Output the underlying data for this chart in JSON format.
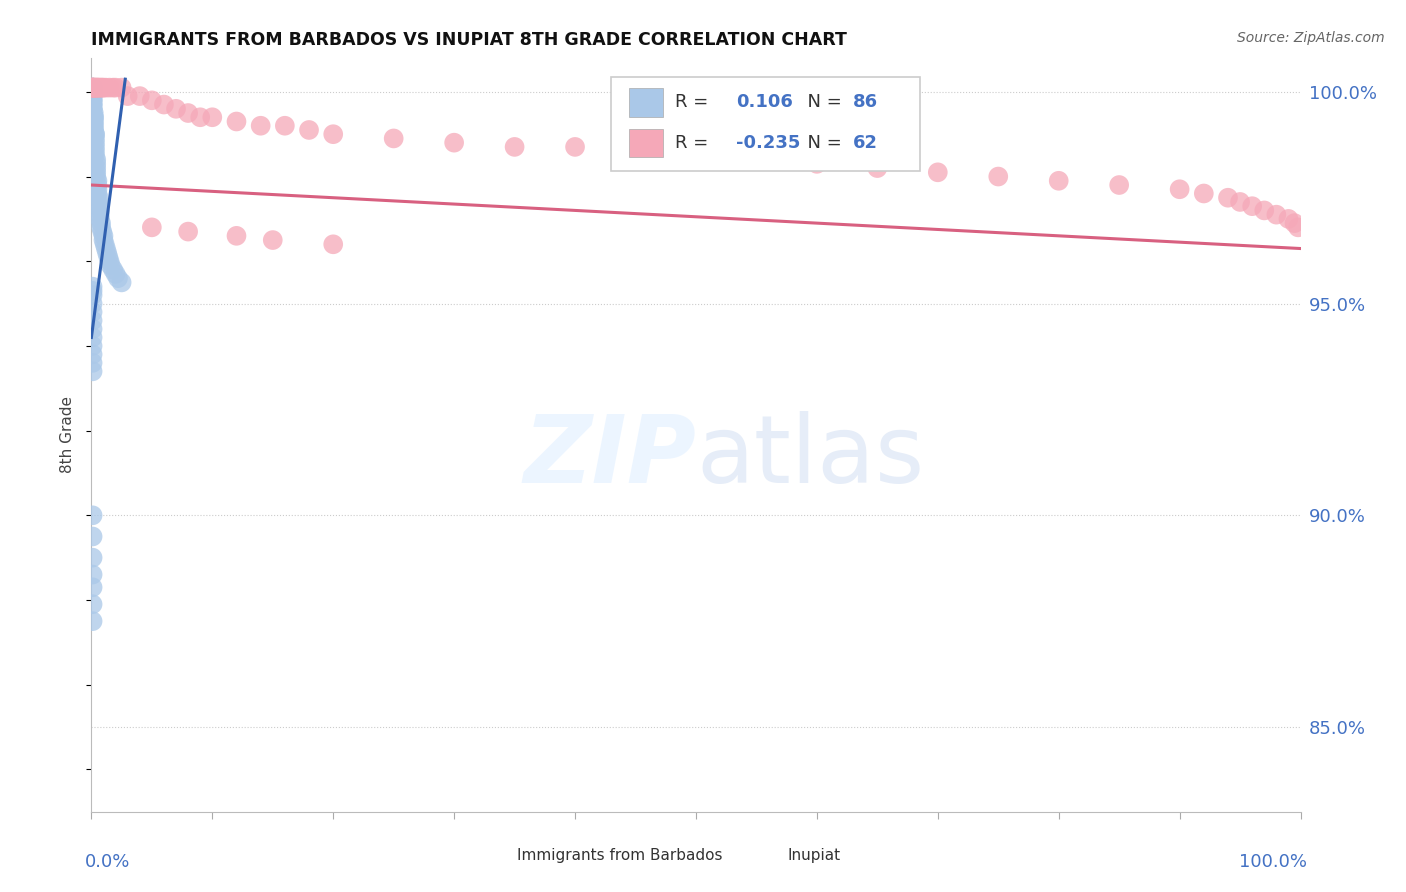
{
  "title": "IMMIGRANTS FROM BARBADOS VS INUPIAT 8TH GRADE CORRELATION CHART",
  "source": "Source: ZipAtlas.com",
  "ylabel": "8th Grade",
  "ylabel_right_labels": [
    "100.0%",
    "95.0%",
    "90.0%",
    "85.0%"
  ],
  "ylabel_right_values": [
    1.0,
    0.95,
    0.9,
    0.85
  ],
  "legend_blue_R": "0.106",
  "legend_blue_N": "86",
  "legend_pink_R": "-0.235",
  "legend_pink_N": "62",
  "blue_color": "#aac8e8",
  "pink_color": "#f5a8b8",
  "blue_line_color": "#3060b0",
  "pink_line_color": "#d86080",
  "xlim": [
    0.0,
    1.0
  ],
  "ylim": [
    0.83,
    1.008
  ],
  "blue_trend_x": [
    0.0,
    0.028
  ],
  "blue_trend_y": [
    0.942,
    1.003
  ],
  "pink_trend_x": [
    0.0,
    1.0
  ],
  "pink_trend_y": [
    0.978,
    0.963
  ],
  "blue_x": [
    0.001,
    0.001,
    0.001,
    0.001,
    0.001,
    0.001,
    0.001,
    0.001,
    0.001,
    0.001,
    0.001,
    0.001,
    0.001,
    0.001,
    0.001,
    0.001,
    0.001,
    0.001,
    0.001,
    0.001,
    0.002,
    0.002,
    0.002,
    0.002,
    0.002,
    0.002,
    0.002,
    0.002,
    0.002,
    0.002,
    0.003,
    0.003,
    0.003,
    0.003,
    0.003,
    0.003,
    0.003,
    0.004,
    0.004,
    0.004,
    0.004,
    0.004,
    0.005,
    0.005,
    0.005,
    0.005,
    0.006,
    0.006,
    0.006,
    0.007,
    0.007,
    0.007,
    0.008,
    0.008,
    0.009,
    0.01,
    0.01,
    0.011,
    0.012,
    0.013,
    0.014,
    0.015,
    0.016,
    0.018,
    0.02,
    0.022,
    0.025,
    0.001,
    0.001,
    0.001,
    0.001,
    0.001,
    0.001,
    0.001,
    0.001,
    0.001,
    0.001,
    0.001,
    0.001,
    0.001,
    0.001,
    0.001,
    0.001,
    0.001,
    0.001,
    0.001
  ],
  "blue_y": [
    1.001,
    1.001,
    1.001,
    1.0,
    1.0,
    1.0,
    0.999,
    0.999,
    0.999,
    0.998,
    0.998,
    0.998,
    0.997,
    0.997,
    0.997,
    0.996,
    0.996,
    0.996,
    0.995,
    0.995,
    0.995,
    0.994,
    0.994,
    0.994,
    0.993,
    0.993,
    0.992,
    0.992,
    0.991,
    0.991,
    0.99,
    0.99,
    0.989,
    0.988,
    0.987,
    0.986,
    0.985,
    0.984,
    0.983,
    0.982,
    0.981,
    0.98,
    0.979,
    0.978,
    0.977,
    0.976,
    0.975,
    0.974,
    0.973,
    0.972,
    0.971,
    0.97,
    0.969,
    0.968,
    0.967,
    0.966,
    0.965,
    0.964,
    0.963,
    0.962,
    0.961,
    0.96,
    0.959,
    0.958,
    0.957,
    0.956,
    0.955,
    0.954,
    0.953,
    0.952,
    0.95,
    0.948,
    0.946,
    0.944,
    0.942,
    0.94,
    0.938,
    0.936,
    0.934,
    0.9,
    0.895,
    0.89,
    0.886,
    0.883,
    0.879,
    0.875
  ],
  "pink_x": [
    0.001,
    0.001,
    0.001,
    0.001,
    0.002,
    0.002,
    0.003,
    0.003,
    0.004,
    0.005,
    0.005,
    0.006,
    0.007,
    0.008,
    0.009,
    0.01,
    0.012,
    0.015,
    0.018,
    0.02,
    0.025,
    0.03,
    0.04,
    0.05,
    0.06,
    0.07,
    0.08,
    0.09,
    0.1,
    0.12,
    0.14,
    0.16,
    0.18,
    0.2,
    0.25,
    0.3,
    0.35,
    0.4,
    0.45,
    0.5,
    0.55,
    0.6,
    0.65,
    0.7,
    0.75,
    0.8,
    0.85,
    0.9,
    0.92,
    0.94,
    0.95,
    0.96,
    0.97,
    0.98,
    0.99,
    0.995,
    0.998,
    0.05,
    0.08,
    0.12,
    0.15,
    0.2
  ],
  "pink_y": [
    1.001,
    1.001,
    1.001,
    1.001,
    1.001,
    1.001,
    1.001,
    1.001,
    1.001,
    1.001,
    1.001,
    1.001,
    1.001,
    1.001,
    1.001,
    1.001,
    1.001,
    1.001,
    1.001,
    1.001,
    1.001,
    0.999,
    0.999,
    0.998,
    0.997,
    0.996,
    0.995,
    0.994,
    0.994,
    0.993,
    0.992,
    0.992,
    0.991,
    0.99,
    0.989,
    0.988,
    0.987,
    0.987,
    0.986,
    0.985,
    0.984,
    0.983,
    0.982,
    0.981,
    0.98,
    0.979,
    0.978,
    0.977,
    0.976,
    0.975,
    0.974,
    0.973,
    0.972,
    0.971,
    0.97,
    0.969,
    0.968,
    0.968,
    0.967,
    0.966,
    0.965,
    0.964
  ]
}
